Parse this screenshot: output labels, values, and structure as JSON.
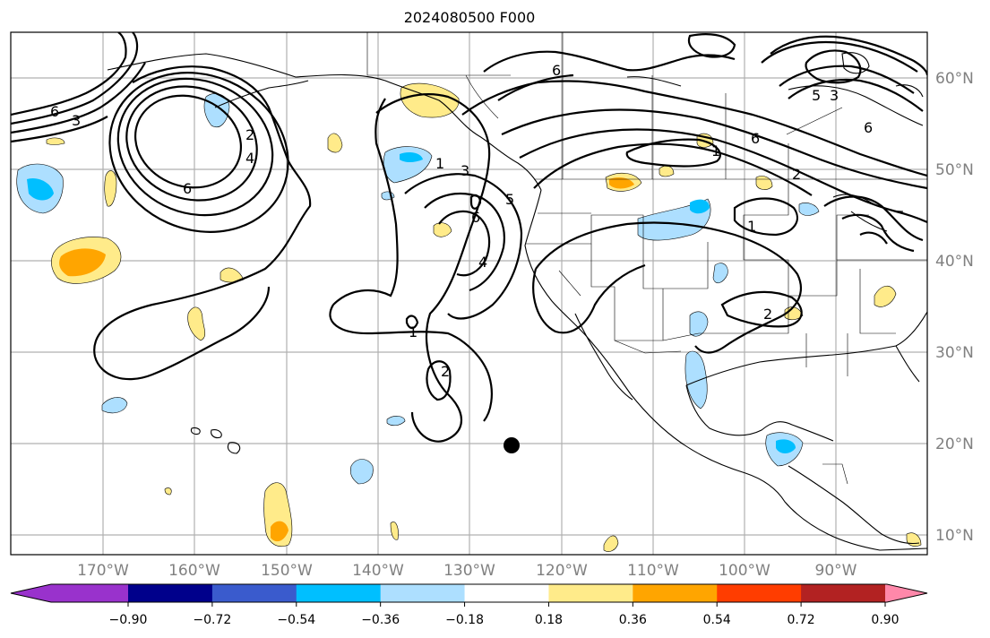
{
  "title": "2024080500 F000",
  "lon_labels": [
    "170°W",
    "160°W",
    "150°W",
    "140°W",
    "130°W",
    "120°W",
    "110°W",
    "100°W",
    "90°W"
  ],
  "lat_labels": [
    "60°N",
    "50°N",
    "40°N",
    "30°N",
    "20°N",
    "10°N"
  ],
  "contour_labels": [
    "6",
    "3",
    "2",
    "4",
    "6",
    "1",
    "3",
    "5",
    "6",
    "6",
    "4",
    "1",
    "2",
    "1",
    "6",
    "2",
    "1",
    "2",
    "5",
    "3",
    "6"
  ],
  "colorbar": {
    "ticks": [
      "−0.90",
      "−0.72",
      "−0.54",
      "−0.36",
      "−0.18",
      "0.18",
      "0.36",
      "0.54",
      "0.72",
      "0.90"
    ],
    "colors": [
      "#9932CC",
      "#00008B",
      "#3A5BCD",
      "#00BFFF",
      "#ADDFFF",
      "#FFFFFF",
      "#FFEB8A",
      "#FFA500",
      "#FF3D00",
      "#B22222",
      "#FF88AA"
    ]
  },
  "marker": "storm-center"
}
